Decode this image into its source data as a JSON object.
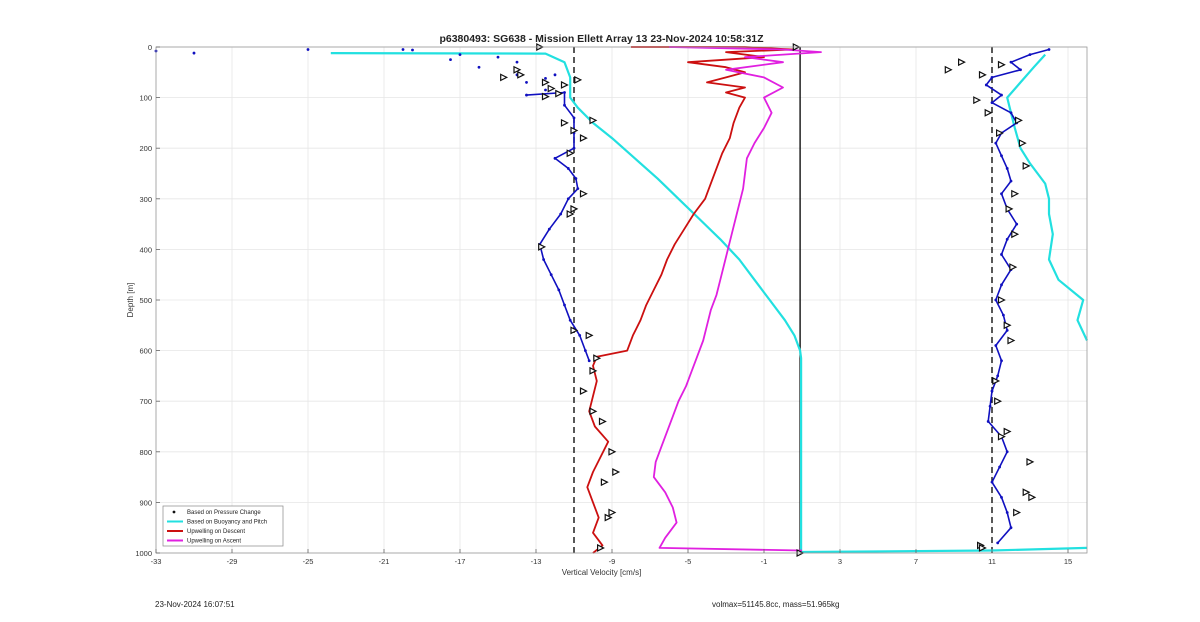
{
  "chart_data": {
    "type": "line",
    "title": "p6380493: SG638 - Mission Ellett Array 13 23-Nov-2024 10:58:31Z",
    "xlabel": "Vertical Velocity [cm/s]",
    "ylabel": "Depth [m]",
    "xlim": [
      -33,
      16
    ],
    "ylim": [
      0,
      1000
    ],
    "y_reversed": true,
    "x_ticks": [
      -33,
      -29,
      -25,
      -21,
      -17,
      -13,
      -9,
      -5,
      -1,
      3,
      7,
      11,
      15
    ],
    "y_ticks": [
      0,
      100,
      200,
      300,
      400,
      500,
      600,
      700,
      800,
      900,
      1000
    ],
    "grid": true,
    "legend_position": "bottom-left",
    "reference_lines": [
      {
        "x": -11,
        "style": "dashed"
      },
      {
        "x": 11,
        "style": "dashed"
      },
      {
        "x": 0.9,
        "style": "solid"
      }
    ],
    "series": [
      {
        "name": "Based on Pressure Change",
        "color": "#1010c0",
        "style": "dots",
        "descent_points": [
          [
            -33,
            8
          ],
          [
            -31,
            12
          ],
          [
            -25,
            5
          ],
          [
            -20,
            5
          ],
          [
            -19.5,
            6
          ],
          [
            -17,
            15
          ],
          [
            -17.5,
            25
          ],
          [
            -15,
            20
          ],
          [
            -14,
            30
          ],
          [
            -16,
            40
          ],
          [
            -14,
            55
          ],
          [
            -13.5,
            70
          ],
          [
            -12.5,
            62
          ],
          [
            -12,
            55
          ],
          [
            -12.5,
            85
          ],
          [
            -13.5,
            95
          ],
          [
            -11.5,
            90
          ],
          [
            -11.5,
            115
          ],
          [
            -11,
            140
          ],
          [
            -11,
            170
          ],
          [
            -11,
            200
          ],
          [
            -12,
            220
          ],
          [
            -11.3,
            240
          ],
          [
            -10.9,
            260
          ],
          [
            -10.8,
            280
          ],
          [
            -11.3,
            300
          ],
          [
            -11.7,
            330
          ],
          [
            -12.3,
            360
          ],
          [
            -12.8,
            390
          ],
          [
            -12.6,
            420
          ],
          [
            -12.2,
            450
          ],
          [
            -11.8,
            480
          ],
          [
            -11.5,
            510
          ],
          [
            -11.2,
            540
          ],
          [
            -10.7,
            570
          ],
          [
            -10.4,
            600
          ],
          [
            -10.2,
            620
          ]
        ],
        "ascent_points": [
          [
            14,
            5
          ],
          [
            13,
            15
          ],
          [
            12,
            30
          ],
          [
            12.5,
            45
          ],
          [
            11,
            60
          ],
          [
            10.7,
            75
          ],
          [
            11.5,
            95
          ],
          [
            11,
            110
          ],
          [
            12,
            130
          ],
          [
            12.3,
            150
          ],
          [
            11.5,
            170
          ],
          [
            11.2,
            190
          ],
          [
            11.5,
            215
          ],
          [
            11.8,
            240
          ],
          [
            12,
            265
          ],
          [
            11.5,
            290
          ],
          [
            11.8,
            320
          ],
          [
            12.3,
            350
          ],
          [
            11.8,
            380
          ],
          [
            11.5,
            410
          ],
          [
            12,
            440
          ],
          [
            11.5,
            470
          ],
          [
            11.2,
            500
          ],
          [
            11.6,
            530
          ],
          [
            11.8,
            560
          ],
          [
            11.2,
            590
          ],
          [
            11.5,
            620
          ],
          [
            11.3,
            650
          ],
          [
            11,
            680
          ],
          [
            10.9,
            710
          ],
          [
            10.8,
            740
          ],
          [
            11.5,
            770
          ],
          [
            11.8,
            800
          ],
          [
            11.4,
            830
          ],
          [
            11,
            860
          ],
          [
            11.5,
            890
          ],
          [
            11.8,
            920
          ],
          [
            12,
            950
          ],
          [
            11.3,
            980
          ]
        ]
      },
      {
        "name": "Based on Buoyancy and Pitch",
        "color": "#22e0e0",
        "style": "line",
        "descent": [
          [
            -23.8,
            12
          ],
          [
            -12.5,
            13
          ],
          [
            -11.5,
            30
          ],
          [
            -11.2,
            60
          ],
          [
            -11.2,
            100
          ],
          [
            -10.8,
            120
          ],
          [
            -10,
            150
          ],
          [
            -9,
            180
          ],
          [
            -7.8,
            220
          ],
          [
            -6.6,
            260
          ],
          [
            -5.5,
            300
          ],
          [
            -4.4,
            340
          ],
          [
            -3.3,
            380
          ],
          [
            -2.3,
            420
          ],
          [
            -1.5,
            460
          ],
          [
            -0.7,
            500
          ],
          [
            0.1,
            540
          ],
          [
            0.6,
            570
          ],
          [
            0.9,
            600
          ],
          [
            0.95,
            615
          ],
          [
            0.95,
            1000
          ]
        ],
        "ascent": [
          [
            16,
            990
          ],
          [
            11,
            995
          ],
          [
            1,
            998
          ],
          [
            16,
            580
          ],
          [
            15.5,
            540
          ],
          [
            15.8,
            500
          ],
          [
            14.5,
            460
          ],
          [
            14,
            420
          ],
          [
            14.2,
            370
          ],
          [
            14,
            330
          ],
          [
            14,
            300
          ],
          [
            13.8,
            270
          ],
          [
            13,
            230
          ],
          [
            12.5,
            200
          ],
          [
            12.2,
            160
          ],
          [
            12,
            130
          ],
          [
            11.8,
            100
          ],
          [
            12.5,
            70
          ],
          [
            13.2,
            40
          ],
          [
            13.8,
            15
          ]
        ]
      },
      {
        "name": "Upwelling on Descent",
        "color": "#cc1010",
        "style": "line",
        "points": [
          [
            -8,
            0
          ],
          [
            -2,
            0
          ],
          [
            0.5,
            5
          ],
          [
            -3,
            10
          ],
          [
            -1,
            20
          ],
          [
            -5,
            30
          ],
          [
            -3,
            40
          ],
          [
            -2,
            50
          ],
          [
            -3,
            60
          ],
          [
            -4,
            70
          ],
          [
            -2,
            80
          ],
          [
            -3,
            90
          ],
          [
            -2,
            100
          ],
          [
            -2.3,
            120
          ],
          [
            -2.6,
            150
          ],
          [
            -2.8,
            180
          ],
          [
            -3.2,
            210
          ],
          [
            -3.5,
            240
          ],
          [
            -3.8,
            270
          ],
          [
            -4.1,
            300
          ],
          [
            -4.7,
            330
          ],
          [
            -5.2,
            360
          ],
          [
            -5.7,
            390
          ],
          [
            -6.1,
            420
          ],
          [
            -6.4,
            450
          ],
          [
            -6.8,
            480
          ],
          [
            -7.2,
            510
          ],
          [
            -7.5,
            540
          ],
          [
            -7.9,
            570
          ],
          [
            -8.2,
            600
          ],
          [
            -9.8,
            612
          ],
          [
            -10,
            630
          ],
          [
            -9.8,
            660
          ],
          [
            -10,
            690
          ],
          [
            -10.2,
            720
          ],
          [
            -9.9,
            750
          ],
          [
            -9.2,
            780
          ],
          [
            -9.6,
            810
          ],
          [
            -10,
            840
          ],
          [
            -10.3,
            870
          ],
          [
            -10,
            900
          ],
          [
            -9.7,
            930
          ],
          [
            -10,
            960
          ],
          [
            -9.5,
            985
          ],
          [
            -10,
            1000
          ]
        ]
      },
      {
        "name": "Upwelling on Ascent",
        "color": "#e020e0",
        "style": "line",
        "points": [
          [
            -6,
            0
          ],
          [
            0,
            5
          ],
          [
            2,
            10
          ],
          [
            -2,
            20
          ],
          [
            0,
            30
          ],
          [
            -3,
            45
          ],
          [
            -1,
            60
          ],
          [
            0,
            80
          ],
          [
            -1,
            100
          ],
          [
            -0.6,
            130
          ],
          [
            -1,
            160
          ],
          [
            -1.5,
            190
          ],
          [
            -1.9,
            220
          ],
          [
            -2,
            250
          ],
          [
            -2.1,
            280
          ],
          [
            -2.3,
            310
          ],
          [
            -2.5,
            340
          ],
          [
            -2.7,
            370
          ],
          [
            -2.9,
            400
          ],
          [
            -3.1,
            430
          ],
          [
            -3.3,
            460
          ],
          [
            -3.5,
            490
          ],
          [
            -3.8,
            520
          ],
          [
            -4,
            550
          ],
          [
            -4.2,
            580
          ],
          [
            -4.5,
            610
          ],
          [
            -4.8,
            640
          ],
          [
            -5.1,
            670
          ],
          [
            -5.5,
            700
          ],
          [
            -5.8,
            730
          ],
          [
            -6.1,
            760
          ],
          [
            -6.4,
            790
          ],
          [
            -6.7,
            820
          ],
          [
            -6.8,
            850
          ],
          [
            -6.2,
            880
          ],
          [
            -5.8,
            910
          ],
          [
            -5.6,
            940
          ],
          [
            -6.2,
            970
          ],
          [
            -6.5,
            990
          ],
          [
            1,
            995
          ]
        ]
      }
    ],
    "triangle_markers_descent": [
      [
        -12.8,
        0
      ],
      [
        -14,
        45
      ],
      [
        -13.8,
        55
      ],
      [
        -14.7,
        60
      ],
      [
        -12.5,
        70
      ],
      [
        -11.5,
        75
      ],
      [
        -10.8,
        65
      ],
      [
        -12.2,
        82
      ],
      [
        -11.8,
        92
      ],
      [
        -12.5,
        98
      ],
      [
        -11.5,
        150
      ],
      [
        -11,
        165
      ],
      [
        -10,
        145
      ],
      [
        -10.5,
        180
      ],
      [
        -11.2,
        210
      ],
      [
        -10.5,
        290
      ],
      [
        -11,
        320
      ],
      [
        -11.2,
        330
      ],
      [
        -12.7,
        395
      ],
      [
        -11,
        560
      ],
      [
        -10.2,
        570
      ],
      [
        -9.8,
        615
      ],
      [
        -10,
        640
      ],
      [
        -10.5,
        680
      ],
      [
        -10,
        720
      ],
      [
        -9.5,
        740
      ],
      [
        -9,
        800
      ],
      [
        -8.8,
        840
      ],
      [
        -9.4,
        860
      ],
      [
        -9,
        920
      ],
      [
        -9.2,
        930
      ],
      [
        -9.6,
        990
      ]
    ],
    "triangle_markers_ascent": [
      [
        0.7,
        0
      ],
      [
        9.4,
        30
      ],
      [
        8.7,
        45
      ],
      [
        10.5,
        55
      ],
      [
        10.2,
        105
      ],
      [
        10.8,
        130
      ],
      [
        11.5,
        35
      ],
      [
        12.4,
        145
      ],
      [
        11.4,
        170
      ],
      [
        12.6,
        190
      ],
      [
        12.8,
        235
      ],
      [
        12.2,
        290
      ],
      [
        11.9,
        320
      ],
      [
        12.2,
        370
      ],
      [
        12.1,
        435
      ],
      [
        11.5,
        500
      ],
      [
        11.8,
        550
      ],
      [
        12,
        580
      ],
      [
        11.2,
        660
      ],
      [
        11.3,
        700
      ],
      [
        11.8,
        760
      ],
      [
        11.5,
        770
      ],
      [
        13,
        820
      ],
      [
        12.8,
        880
      ],
      [
        13.1,
        890
      ],
      [
        12.3,
        920
      ],
      [
        10.4,
        985
      ],
      [
        10.5,
        990
      ],
      [
        0.9,
        1000
      ]
    ],
    "legend": [
      "Based on Pressure Change",
      "Based on Buoyancy and Pitch",
      "Upwelling on Descent",
      "Upwelling on Ascent"
    ]
  },
  "footer": {
    "timestamp": "23-Nov-2024 16:07:51",
    "volmax_mass": "volmax=51145.8cc, mass=51.965kg"
  }
}
